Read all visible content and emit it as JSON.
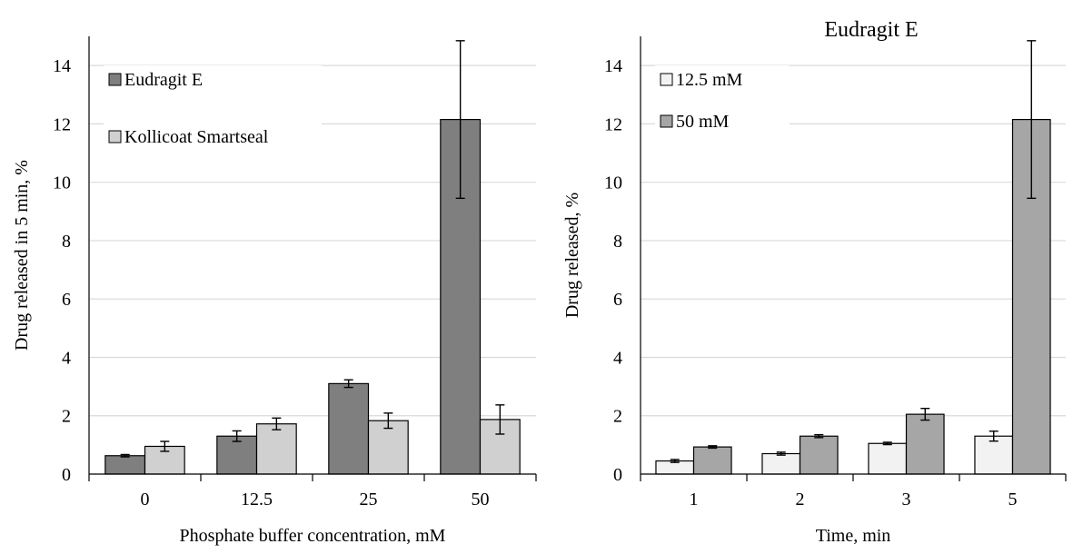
{
  "colors": {
    "dark_bar": "#7f7f7f",
    "light_bar": "#d0d0d0",
    "white_bar": "#f2f2f2",
    "mid_bar": "#a6a6a6",
    "grid": "#d9d9d9",
    "outline": "#000000"
  },
  "chart_data": [
    {
      "type": "bar",
      "title": "",
      "xlabel": "Phosphate buffer concentration, mM",
      "ylabel": "Drug released in 5 min, %",
      "categories": [
        "0",
        "12.5",
        "25",
        "50"
      ],
      "ylim": [
        0,
        15
      ],
      "yticks": [
        "0",
        "2",
        "4",
        "6",
        "8",
        "10",
        "12",
        "14"
      ],
      "grid": true,
      "legend_position": "top-left",
      "series": [
        {
          "name": "Eudragit E",
          "color": "#7f7f7f",
          "values": [
            0.63,
            1.3,
            3.1,
            12.15
          ],
          "errors": [
            0.04,
            0.18,
            0.13,
            2.7
          ]
        },
        {
          "name": "Kollicoat Smartseal",
          "color": "#d0d0d0",
          "values": [
            0.95,
            1.72,
            1.83,
            1.87
          ],
          "errors": [
            0.17,
            0.2,
            0.26,
            0.5
          ]
        }
      ]
    },
    {
      "type": "bar",
      "title": "Eudragit E",
      "xlabel": "Time, min",
      "ylabel": "Drug released, %",
      "categories": [
        "1",
        "2",
        "3",
        "5"
      ],
      "ylim": [
        0,
        15
      ],
      "yticks": [
        "0",
        "2",
        "4",
        "6",
        "8",
        "10",
        "12",
        "14"
      ],
      "grid": true,
      "legend_position": "top-left",
      "series": [
        {
          "name": "12.5 mM",
          "color": "#f2f2f2",
          "values": [
            0.45,
            0.7,
            1.05,
            1.3
          ],
          "errors": [
            0.05,
            0.05,
            0.04,
            0.17
          ]
        },
        {
          "name": "50 mM",
          "color": "#a6a6a6",
          "values": [
            0.93,
            1.3,
            2.05,
            12.15
          ],
          "errors": [
            0.04,
            0.05,
            0.2,
            2.7
          ]
        }
      ]
    }
  ]
}
